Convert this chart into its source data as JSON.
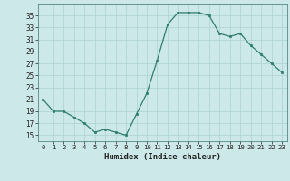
{
  "x": [
    0,
    1,
    2,
    3,
    4,
    5,
    6,
    7,
    8,
    9,
    10,
    11,
    12,
    13,
    14,
    15,
    16,
    17,
    18,
    19,
    20,
    21,
    22,
    23
  ],
  "y": [
    21,
    19,
    19,
    18,
    17,
    15.5,
    16,
    15.5,
    15,
    18.5,
    22,
    27.5,
    33.5,
    35.5,
    35.5,
    35.5,
    35,
    32,
    31.5,
    32,
    30,
    28.5,
    27,
    25.5
  ],
  "line_color": "#2e7d6e",
  "marker_color": "#2e7d6e",
  "bg_color": "#cce8e8",
  "grid_color": "#b0d4d4",
  "xlabel": "Humidex (Indice chaleur)",
  "xlim": [
    -0.5,
    23.5
  ],
  "ylim": [
    14,
    37
  ],
  "yticks": [
    15,
    17,
    19,
    21,
    23,
    25,
    27,
    29,
    31,
    33,
    35
  ],
  "xticks": [
    0,
    1,
    2,
    3,
    4,
    5,
    6,
    7,
    8,
    9,
    10,
    11,
    12,
    13,
    14,
    15,
    16,
    17,
    18,
    19,
    20,
    21,
    22,
    23
  ],
  "xtick_labels": [
    "0",
    "1",
    "2",
    "3",
    "4",
    "5",
    "6",
    "7",
    "8",
    "9",
    "10",
    "11",
    "12",
    "13",
    "14",
    "15",
    "16",
    "17",
    "18",
    "19",
    "20",
    "21",
    "22",
    "23"
  ]
}
